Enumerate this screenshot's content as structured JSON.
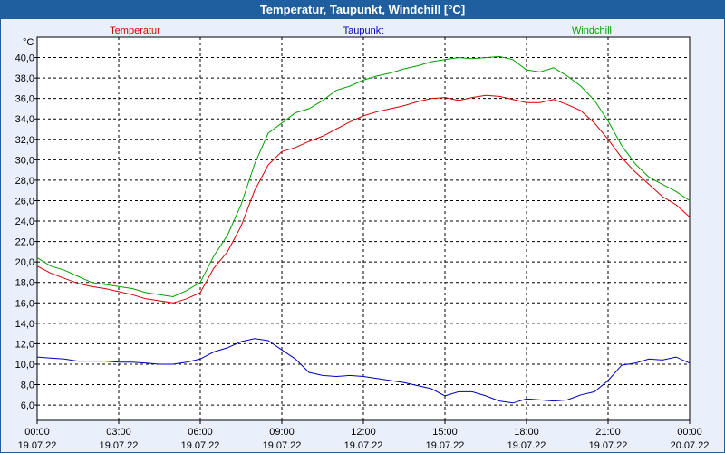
{
  "window": {
    "title": "Temperatur, Taupunkt, Windchill [°C]"
  },
  "chart_data": {
    "type": "line",
    "title": "Temperatur, Taupunkt, Windchill [°C]",
    "ylabel": "°C",
    "xlabel": "",
    "ylim": [
      4.5,
      42.0
    ],
    "xlim": [
      0,
      24
    ],
    "grid": true,
    "legend": [
      "Temperatur",
      "Taupunkt",
      "Windchill"
    ],
    "colors": {
      "Temperatur": "#d40000",
      "Taupunkt": "#0000c0",
      "Windchill": "#00a000",
      "grid": "#000000",
      "axis": "#000000"
    },
    "yticks": [
      6,
      8,
      10,
      12,
      14,
      16,
      18,
      20,
      22,
      24,
      26,
      28,
      30,
      32,
      34,
      36,
      38,
      40
    ],
    "ytick_labels": [
      "6,0",
      "8,0",
      "10,0",
      "12,0",
      "14,0",
      "16,0",
      "18,0",
      "20,0",
      "22,0",
      "24,0",
      "26,0",
      "28,0",
      "30,0",
      "32,0",
      "34,0",
      "36,0",
      "38,0",
      "40,0"
    ],
    "xticks": [
      0,
      3,
      6,
      9,
      12,
      15,
      18,
      21,
      24
    ],
    "xtick_time": [
      "00:00",
      "03:00",
      "06:00",
      "09:00",
      "12:00",
      "15:00",
      "18:00",
      "21:00",
      "00:00"
    ],
    "xtick_date": [
      "19.07.22",
      "19.07.22",
      "19.07.22",
      "19.07.22",
      "19.07.22",
      "19.07.22",
      "19.07.22",
      "19.07.22",
      "20.07.22"
    ],
    "x": [
      0,
      0.5,
      1,
      1.5,
      2,
      2.5,
      3,
      3.5,
      4,
      4.5,
      5,
      5.5,
      6,
      6.5,
      7,
      7.5,
      8,
      8.5,
      9,
      9.5,
      10,
      10.5,
      11,
      11.5,
      12,
      12.5,
      13,
      13.5,
      14,
      14.5,
      15,
      15.5,
      16,
      16.5,
      17,
      17.5,
      18,
      18.5,
      19,
      19.5,
      20,
      20.5,
      21,
      21.5,
      22,
      22.5,
      23,
      23.5,
      24
    ],
    "series": [
      {
        "name": "Temperatur",
        "values": [
          19.6,
          18.9,
          18.4,
          17.9,
          17.6,
          17.4,
          17.1,
          16.8,
          16.4,
          16.2,
          16.0,
          16.4,
          17.0,
          19.4,
          21.0,
          23.5,
          27.0,
          29.5,
          30.8,
          31.2,
          31.8,
          32.3,
          33.0,
          33.7,
          34.3,
          34.7,
          35.0,
          35.3,
          35.7,
          36.0,
          36.1,
          35.8,
          36.1,
          36.3,
          36.2,
          35.9,
          35.6,
          35.6,
          35.9,
          35.4,
          34.8,
          33.6,
          32.0,
          30.2,
          28.8,
          27.6,
          26.4,
          25.6,
          24.4
        ]
      },
      {
        "name": "Taupunkt",
        "values": [
          10.7,
          10.6,
          10.5,
          10.3,
          10.3,
          10.3,
          10.2,
          10.2,
          10.1,
          10.0,
          10.0,
          10.2,
          10.5,
          11.2,
          11.6,
          12.2,
          12.5,
          12.3,
          11.4,
          10.5,
          9.2,
          8.9,
          8.8,
          8.9,
          8.8,
          8.6,
          8.4,
          8.2,
          7.9,
          7.6,
          6.9,
          7.3,
          7.3,
          6.9,
          6.4,
          6.2,
          6.6,
          6.5,
          6.4,
          6.5,
          7.0,
          7.3,
          8.4,
          9.9,
          10.1,
          10.5,
          10.4,
          10.7,
          10.1
        ]
      },
      {
        "name": "Windchill",
        "values": [
          20.4,
          19.6,
          19.2,
          18.6,
          18.0,
          17.8,
          17.6,
          17.4,
          17.0,
          16.8,
          16.6,
          17.2,
          18.0,
          20.6,
          22.6,
          25.6,
          29.6,
          32.6,
          33.6,
          34.6,
          35.0,
          35.8,
          36.8,
          37.2,
          37.8,
          38.2,
          38.5,
          38.9,
          39.2,
          39.6,
          39.8,
          40.0,
          39.9,
          40.0,
          40.1,
          39.8,
          38.8,
          38.6,
          39.0,
          38.2,
          37.2,
          35.8,
          33.8,
          31.4,
          29.6,
          28.3,
          27.6,
          26.9,
          26.0
        ]
      }
    ]
  }
}
